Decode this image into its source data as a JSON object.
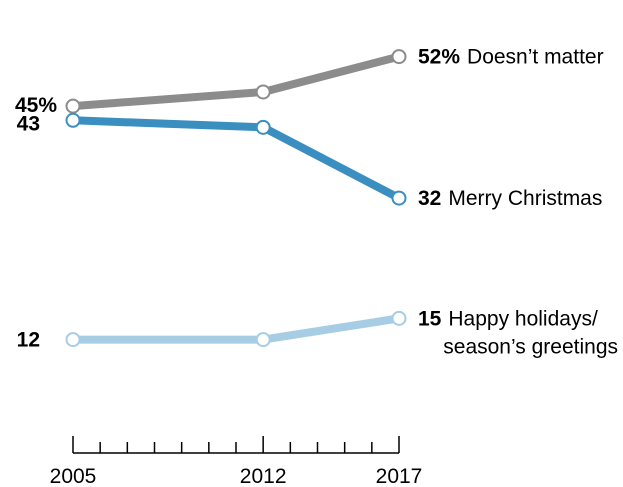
{
  "chart_data": {
    "type": "line",
    "x": [
      2005,
      2012,
      2017
    ],
    "xlim": [
      2005,
      2017
    ],
    "ylim": [
      0,
      60
    ],
    "grid": false,
    "series": [
      {
        "values": [
          45,
          47,
          52
        ],
        "color": "#8c8c8c",
        "start_label": "45%",
        "end_value_label": "52%",
        "end_name_label": "Doesn’t matter"
      },
      {
        "values": [
          43,
          42,
          32
        ],
        "color": "#3a8fc0",
        "start_label": "43",
        "end_value_label": "32",
        "end_name_label": "Merry Christmas"
      },
      {
        "values": [
          12,
          12,
          15
        ],
        "color": "#a6cde4",
        "start_label": "12",
        "end_value_label": "15",
        "end_name_label": "Happy holidays/",
        "end_name_label_line2": "season’s greetings"
      }
    ],
    "x_tick_labels": [
      "2005",
      "2012",
      "2017"
    ]
  }
}
